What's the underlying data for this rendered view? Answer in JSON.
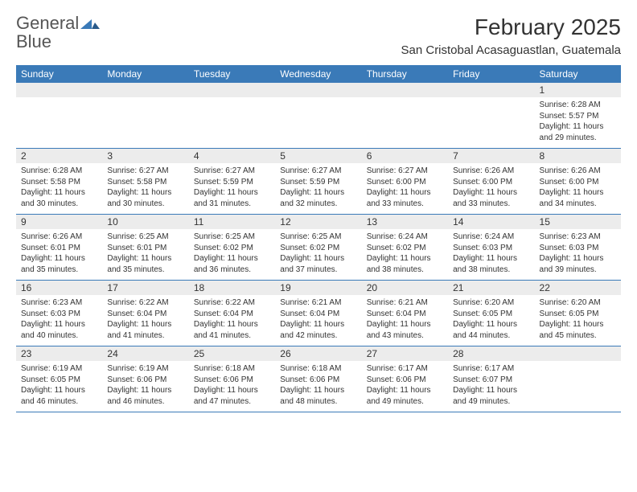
{
  "logo": {
    "text_gray": "General",
    "text_blue": "Blue"
  },
  "title": "February 2025",
  "location": "San Cristobal Acasaguastlan, Guatemala",
  "colors": {
    "header_bg": "#3a7ab8",
    "header_text": "#ffffff",
    "daynum_bg": "#ececec",
    "text": "#333333",
    "rule": "#3a7ab8"
  },
  "day_names": [
    "Sunday",
    "Monday",
    "Tuesday",
    "Wednesday",
    "Thursday",
    "Friday",
    "Saturday"
  ],
  "labels": {
    "sunrise": "Sunrise:",
    "sunset": "Sunset:",
    "daylight": "Daylight:"
  },
  "first_weekday": 6,
  "days": [
    {
      "n": 1,
      "sunrise": "6:28 AM",
      "sunset": "5:57 PM",
      "daylight": "11 hours and 29 minutes."
    },
    {
      "n": 2,
      "sunrise": "6:28 AM",
      "sunset": "5:58 PM",
      "daylight": "11 hours and 30 minutes."
    },
    {
      "n": 3,
      "sunrise": "6:27 AM",
      "sunset": "5:58 PM",
      "daylight": "11 hours and 30 minutes."
    },
    {
      "n": 4,
      "sunrise": "6:27 AM",
      "sunset": "5:59 PM",
      "daylight": "11 hours and 31 minutes."
    },
    {
      "n": 5,
      "sunrise": "6:27 AM",
      "sunset": "5:59 PM",
      "daylight": "11 hours and 32 minutes."
    },
    {
      "n": 6,
      "sunrise": "6:27 AM",
      "sunset": "6:00 PM",
      "daylight": "11 hours and 33 minutes."
    },
    {
      "n": 7,
      "sunrise": "6:26 AM",
      "sunset": "6:00 PM",
      "daylight": "11 hours and 33 minutes."
    },
    {
      "n": 8,
      "sunrise": "6:26 AM",
      "sunset": "6:00 PM",
      "daylight": "11 hours and 34 minutes."
    },
    {
      "n": 9,
      "sunrise": "6:26 AM",
      "sunset": "6:01 PM",
      "daylight": "11 hours and 35 minutes."
    },
    {
      "n": 10,
      "sunrise": "6:25 AM",
      "sunset": "6:01 PM",
      "daylight": "11 hours and 35 minutes."
    },
    {
      "n": 11,
      "sunrise": "6:25 AM",
      "sunset": "6:02 PM",
      "daylight": "11 hours and 36 minutes."
    },
    {
      "n": 12,
      "sunrise": "6:25 AM",
      "sunset": "6:02 PM",
      "daylight": "11 hours and 37 minutes."
    },
    {
      "n": 13,
      "sunrise": "6:24 AM",
      "sunset": "6:02 PM",
      "daylight": "11 hours and 38 minutes."
    },
    {
      "n": 14,
      "sunrise": "6:24 AM",
      "sunset": "6:03 PM",
      "daylight": "11 hours and 38 minutes."
    },
    {
      "n": 15,
      "sunrise": "6:23 AM",
      "sunset": "6:03 PM",
      "daylight": "11 hours and 39 minutes."
    },
    {
      "n": 16,
      "sunrise": "6:23 AM",
      "sunset": "6:03 PM",
      "daylight": "11 hours and 40 minutes."
    },
    {
      "n": 17,
      "sunrise": "6:22 AM",
      "sunset": "6:04 PM",
      "daylight": "11 hours and 41 minutes."
    },
    {
      "n": 18,
      "sunrise": "6:22 AM",
      "sunset": "6:04 PM",
      "daylight": "11 hours and 41 minutes."
    },
    {
      "n": 19,
      "sunrise": "6:21 AM",
      "sunset": "6:04 PM",
      "daylight": "11 hours and 42 minutes."
    },
    {
      "n": 20,
      "sunrise": "6:21 AM",
      "sunset": "6:04 PM",
      "daylight": "11 hours and 43 minutes."
    },
    {
      "n": 21,
      "sunrise": "6:20 AM",
      "sunset": "6:05 PM",
      "daylight": "11 hours and 44 minutes."
    },
    {
      "n": 22,
      "sunrise": "6:20 AM",
      "sunset": "6:05 PM",
      "daylight": "11 hours and 45 minutes."
    },
    {
      "n": 23,
      "sunrise": "6:19 AM",
      "sunset": "6:05 PM",
      "daylight": "11 hours and 46 minutes."
    },
    {
      "n": 24,
      "sunrise": "6:19 AM",
      "sunset": "6:06 PM",
      "daylight": "11 hours and 46 minutes."
    },
    {
      "n": 25,
      "sunrise": "6:18 AM",
      "sunset": "6:06 PM",
      "daylight": "11 hours and 47 minutes."
    },
    {
      "n": 26,
      "sunrise": "6:18 AM",
      "sunset": "6:06 PM",
      "daylight": "11 hours and 48 minutes."
    },
    {
      "n": 27,
      "sunrise": "6:17 AM",
      "sunset": "6:06 PM",
      "daylight": "11 hours and 49 minutes."
    },
    {
      "n": 28,
      "sunrise": "6:17 AM",
      "sunset": "6:07 PM",
      "daylight": "11 hours and 49 minutes."
    }
  ]
}
